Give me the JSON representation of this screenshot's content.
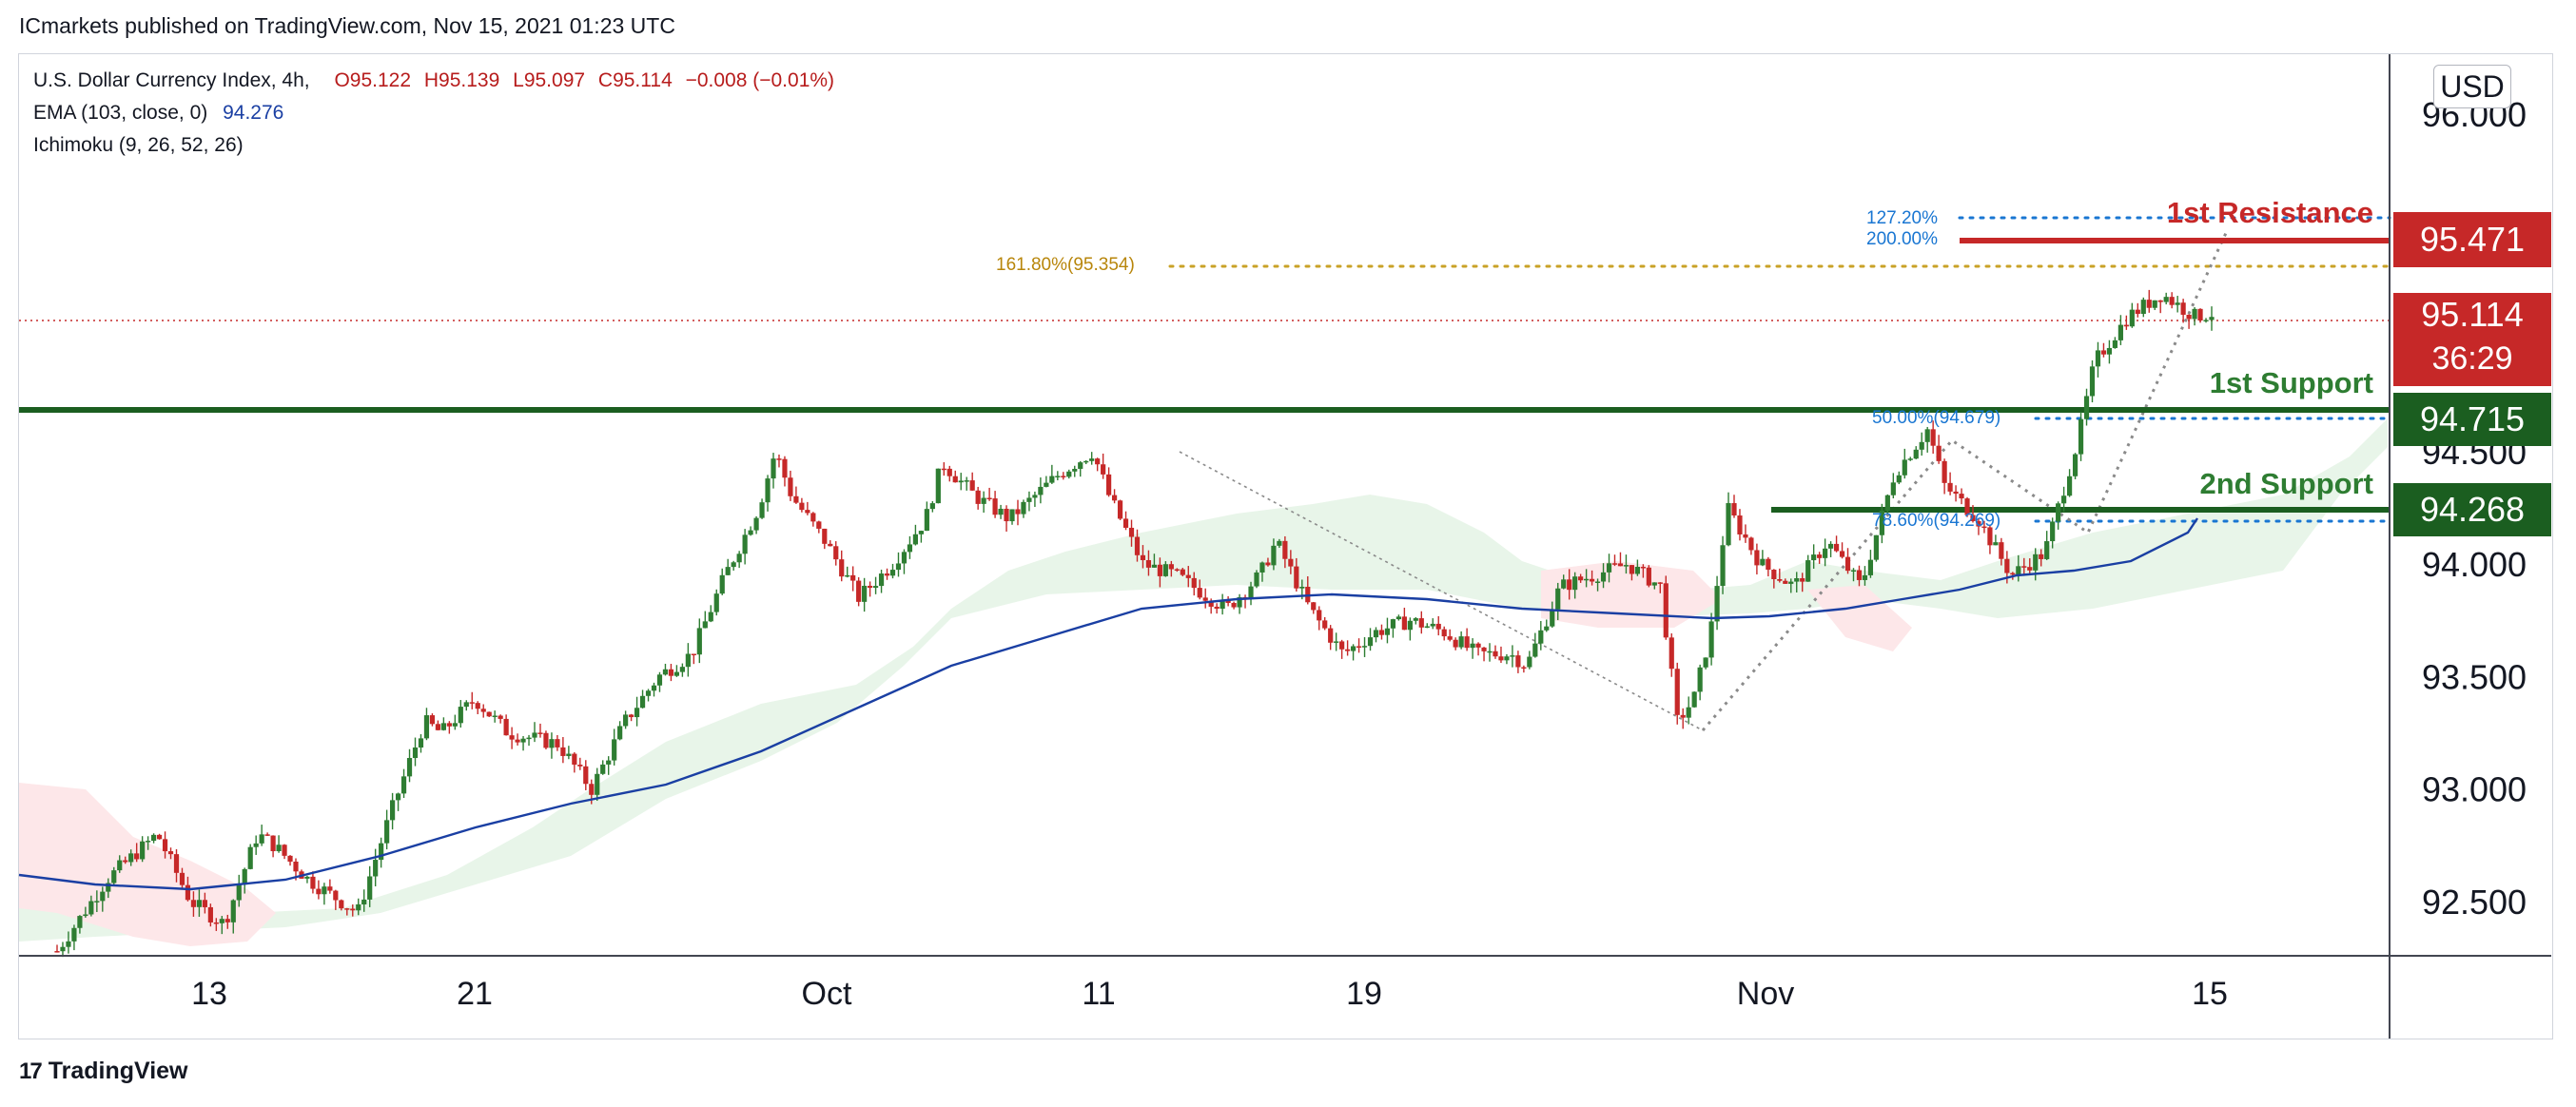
{
  "header": {
    "published": "ICmarkets published on TradingView.com, Nov 15, 2021 01:23 UTC"
  },
  "legend": {
    "symbol": "U.S. Dollar Currency Index, 4h,",
    "open": "O95.122",
    "high": "H95.139",
    "low": "L95.097",
    "close": "C95.114",
    "change": "−0.008 (−0.01%)",
    "ema_label": "EMA (103, close, 0)",
    "ema_value": "94.276",
    "ichimoku_label": "Ichimoku (9, 26, 52, 26)"
  },
  "currency_button": "USD",
  "footer": {
    "brand": "TradingView",
    "mark": "17"
  },
  "price_tags": {
    "resistance": "95.471",
    "last": "95.114",
    "countdown": "36:29",
    "support1": "94.715",
    "support2": "94.268"
  },
  "levels": {
    "resistance_label": "1st Resistance",
    "support1_label": "1st Support",
    "support2_label": "2nd Support"
  },
  "fib_labels": {
    "f127": "127.20%",
    "f200": "200.00%",
    "f161": "161.80%(95.354)",
    "f50": "50.00%(94.679)",
    "f78": "78.60%(94.269)"
  },
  "colors": {
    "up": "#2e7d32",
    "down": "#c62828",
    "ema": "#1a3fa3",
    "cloud_bull": "#e8f5e9",
    "cloud_bear": "#fde7e9",
    "resistance": "#c62828",
    "support": "#1b5e20",
    "fib_blue": "#1976d2",
    "fib_gold": "#c9a227"
  },
  "chart_data": {
    "type": "candlestick",
    "symbol": "U.S. Dollar Currency Index",
    "timeframe": "4h",
    "y_ticks": [
      "92.500",
      "93.000",
      "93.500",
      "94.000",
      "94.500",
      "96.000"
    ],
    "x_ticks": [
      "13",
      "21",
      "Oct",
      "11",
      "19",
      "Nov",
      "15"
    ],
    "ylim": [
      92.27,
      96.07
    ],
    "price_series": [
      [
        0,
        92.28
      ],
      [
        3,
        92.6
      ],
      [
        6,
        92.8
      ],
      [
        8,
        92.5
      ],
      [
        10,
        92.4
      ],
      [
        12,
        92.8
      ],
      [
        13,
        92.75
      ],
      [
        15,
        92.6
      ],
      [
        17,
        92.5
      ],
      [
        18,
        92.45
      ],
      [
        20,
        92.9
      ],
      [
        22,
        93.3
      ],
      [
        23,
        93.25
      ],
      [
        25,
        93.4
      ],
      [
        27,
        93.25
      ],
      [
        30,
        93.2
      ],
      [
        32,
        93.0
      ],
      [
        34,
        93.3
      ],
      [
        36,
        93.5
      ],
      [
        38,
        93.6
      ],
      [
        40,
        93.95
      ],
      [
        42,
        94.25
      ],
      [
        43,
        94.5
      ],
      [
        44,
        94.3
      ],
      [
        46,
        94.1
      ],
      [
        48,
        93.85
      ],
      [
        50,
        94.0
      ],
      [
        52,
        94.2
      ],
      [
        53,
        94.45
      ],
      [
        55,
        94.3
      ],
      [
        57,
        94.2
      ],
      [
        60,
        94.4
      ],
      [
        62,
        94.5
      ],
      [
        63,
        94.3
      ],
      [
        65,
        94.0
      ],
      [
        67,
        93.95
      ],
      [
        70,
        93.8
      ],
      [
        72,
        93.95
      ],
      [
        73,
        94.1
      ],
      [
        75,
        93.8
      ],
      [
        77,
        93.6
      ],
      [
        79,
        93.7
      ],
      [
        81,
        93.75
      ],
      [
        83,
        93.7
      ],
      [
        85,
        93.6
      ],
      [
        87,
        93.6
      ],
      [
        88,
        93.55
      ],
      [
        90,
        93.9
      ],
      [
        92,
        93.95
      ],
      [
        94,
        94.0
      ],
      [
        96,
        93.9
      ],
      [
        97,
        93.3
      ],
      [
        98,
        93.4
      ],
      [
        99,
        93.7
      ],
      [
        100,
        94.25
      ],
      [
        102,
        94.0
      ],
      [
        104,
        93.9
      ],
      [
        106,
        94.1
      ],
      [
        108,
        93.9
      ],
      [
        110,
        94.4
      ],
      [
        112,
        94.6
      ],
      [
        113,
        94.35
      ],
      [
        115,
        94.2
      ],
      [
        117,
        93.95
      ],
      [
        119,
        94.05
      ],
      [
        120,
        94.3
      ],
      [
        121,
        94.55
      ],
      [
        122,
        94.9
      ],
      [
        124,
        95.1
      ],
      [
        126,
        95.2
      ],
      [
        128,
        95.1
      ],
      [
        129,
        95.114
      ]
    ],
    "ema": {
      "name": "EMA (103, close, 0)",
      "last": 94.276
    },
    "levels": [
      {
        "name": "1st Resistance",
        "value": 95.471
      },
      {
        "name": "1st Support",
        "value": 94.715
      },
      {
        "name": "2nd Support",
        "value": 94.268
      }
    ],
    "fibonacci": [
      {
        "label": "127.20%"
      },
      {
        "label": "200.00%"
      },
      {
        "label": "161.80%",
        "value": 95.354
      },
      {
        "label": "50.00%",
        "value": 94.679
      },
      {
        "label": "78.60%",
        "value": 94.269
      }
    ],
    "last_price": 95.114,
    "grid": false
  }
}
